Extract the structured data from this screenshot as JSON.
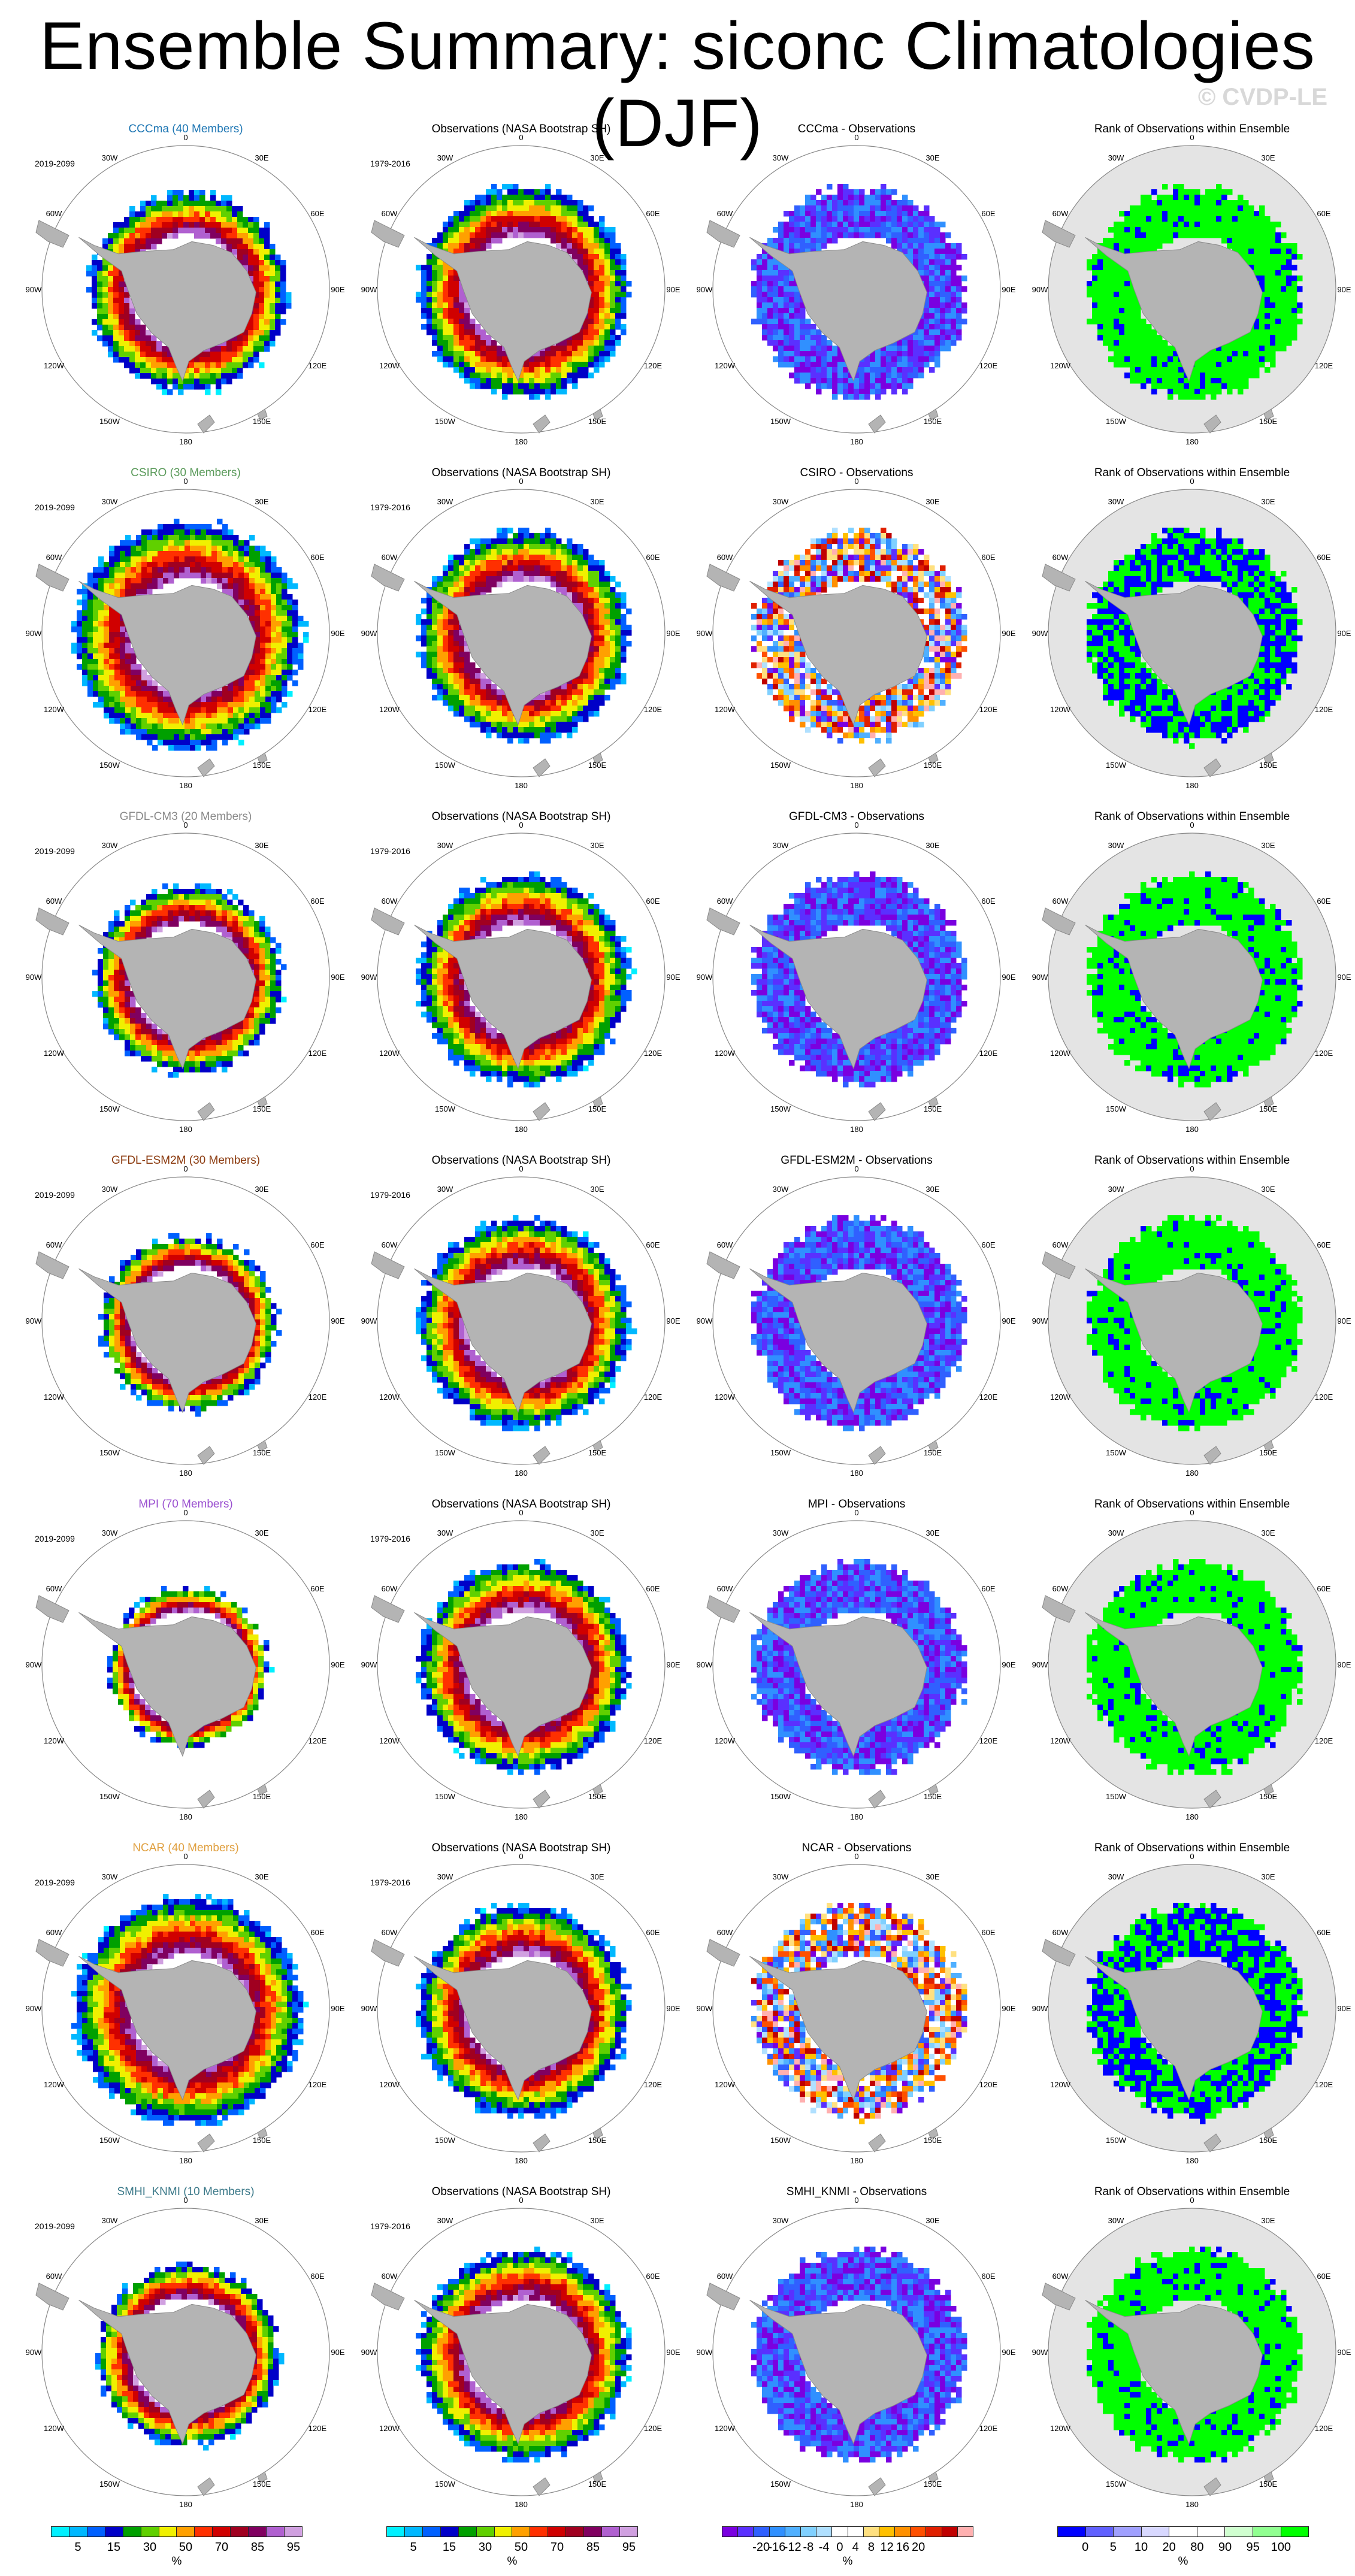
{
  "header": {
    "title": "Ensemble Summary: siconc Climatologies (DJF)",
    "watermark": "© CVDP-LE"
  },
  "lon_labels": [
    "0",
    "30E",
    "60E",
    "90E",
    "120E",
    "150E",
    "180",
    "150W",
    "120W",
    "90W",
    "60W",
    "30W"
  ],
  "rows": [
    {
      "model": "CCCma (40 Members)",
      "model_color": "#1f77b4",
      "model_period": "2019-2099",
      "obs_title": "Observations (NASA Bootstrap SH)",
      "obs_period": "1979-2016",
      "diff_title": "CCCma - Observations",
      "rank_title": "Rank of Observations within Ensemble"
    },
    {
      "model": "CSIRO (30 Members)",
      "model_color": "#5a9a5a",
      "model_period": "2019-2099",
      "obs_title": "Observations (NASA Bootstrap SH)",
      "obs_period": "1979-2016",
      "diff_title": "CSIRO - Observations",
      "rank_title": "Rank of Observations within Ensemble"
    },
    {
      "model": "GFDL-CM3 (20 Members)",
      "model_color": "#8a8a8a",
      "model_period": "2019-2099",
      "obs_title": "Observations (NASA Bootstrap SH)",
      "obs_period": "1979-2016",
      "diff_title": "GFDL-CM3 - Observations",
      "rank_title": "Rank of Observations within Ensemble"
    },
    {
      "model": "GFDL-ESM2M (30 Members)",
      "model_color": "#8b3a0e",
      "model_period": "2019-2099",
      "obs_title": "Observations (NASA Bootstrap SH)",
      "obs_period": "1979-2016",
      "diff_title": "GFDL-ESM2M - Observations",
      "rank_title": "Rank of Observations within Ensemble"
    },
    {
      "model": "MPI (70 Members)",
      "model_color": "#9a4fd0",
      "model_period": "2019-2099",
      "obs_title": "Observations (NASA Bootstrap SH)",
      "obs_period": "1979-2016",
      "diff_title": "MPI - Observations",
      "rank_title": "Rank of Observations within Ensemble"
    },
    {
      "model": "NCAR (40 Members)",
      "model_color": "#e0a040",
      "model_period": "2019-2099",
      "obs_title": "Observations (NASA Bootstrap SH)",
      "obs_period": "1979-2016",
      "diff_title": "NCAR - Observations",
      "rank_title": "Rank of Observations within Ensemble"
    },
    {
      "model": "SMHI_KNMI (10 Members)",
      "model_color": "#3d7a8a",
      "model_period": "2019-2099",
      "obs_title": "Observations (NASA Bootstrap SH)",
      "obs_period": "1979-2016",
      "diff_title": "SMHI_KNMI - Observations",
      "rank_title": "Rank of Observations within Ensemble"
    }
  ],
  "colorbars": {
    "concentration": {
      "unit": "%",
      "ticks": [
        "5",
        "15",
        "30",
        "50",
        "70",
        "85",
        "95"
      ],
      "colors": [
        "#00f0ff",
        "#00b8ff",
        "#0060ff",
        "#0000c8",
        "#00a000",
        "#60d000",
        "#f0f000",
        "#ffa000",
        "#ff3000",
        "#d00000",
        "#a00020",
        "#800060",
        "#b060d0",
        "#d0a0e0"
      ]
    },
    "difference": {
      "unit": "%",
      "ticks": [
        "-20",
        "-16",
        "-12",
        "-8",
        "-4",
        "0",
        "4",
        "8",
        "12",
        "16",
        "20"
      ],
      "colors": [
        "#7a00e0",
        "#5a30ff",
        "#3060ff",
        "#3090ff",
        "#50b0ff",
        "#80d0ff",
        "#b0e0ff",
        "#ffffff",
        "#ffffff",
        "#ffe080",
        "#ffc000",
        "#ff9000",
        "#ff5000",
        "#e02000",
        "#c00000",
        "#ffb0b0"
      ]
    },
    "rank": {
      "unit": "%",
      "ticks": [
        "0",
        "5",
        "10",
        "20",
        "80",
        "90",
        "95",
        "100"
      ],
      "colors": [
        "#0000ff",
        "#6060ff",
        "#a0a0ff",
        "#d8d8ff",
        "#ffffff",
        "#ffffff",
        "#d0ffd0",
        "#90ff90",
        "#00ff00"
      ]
    }
  }
}
